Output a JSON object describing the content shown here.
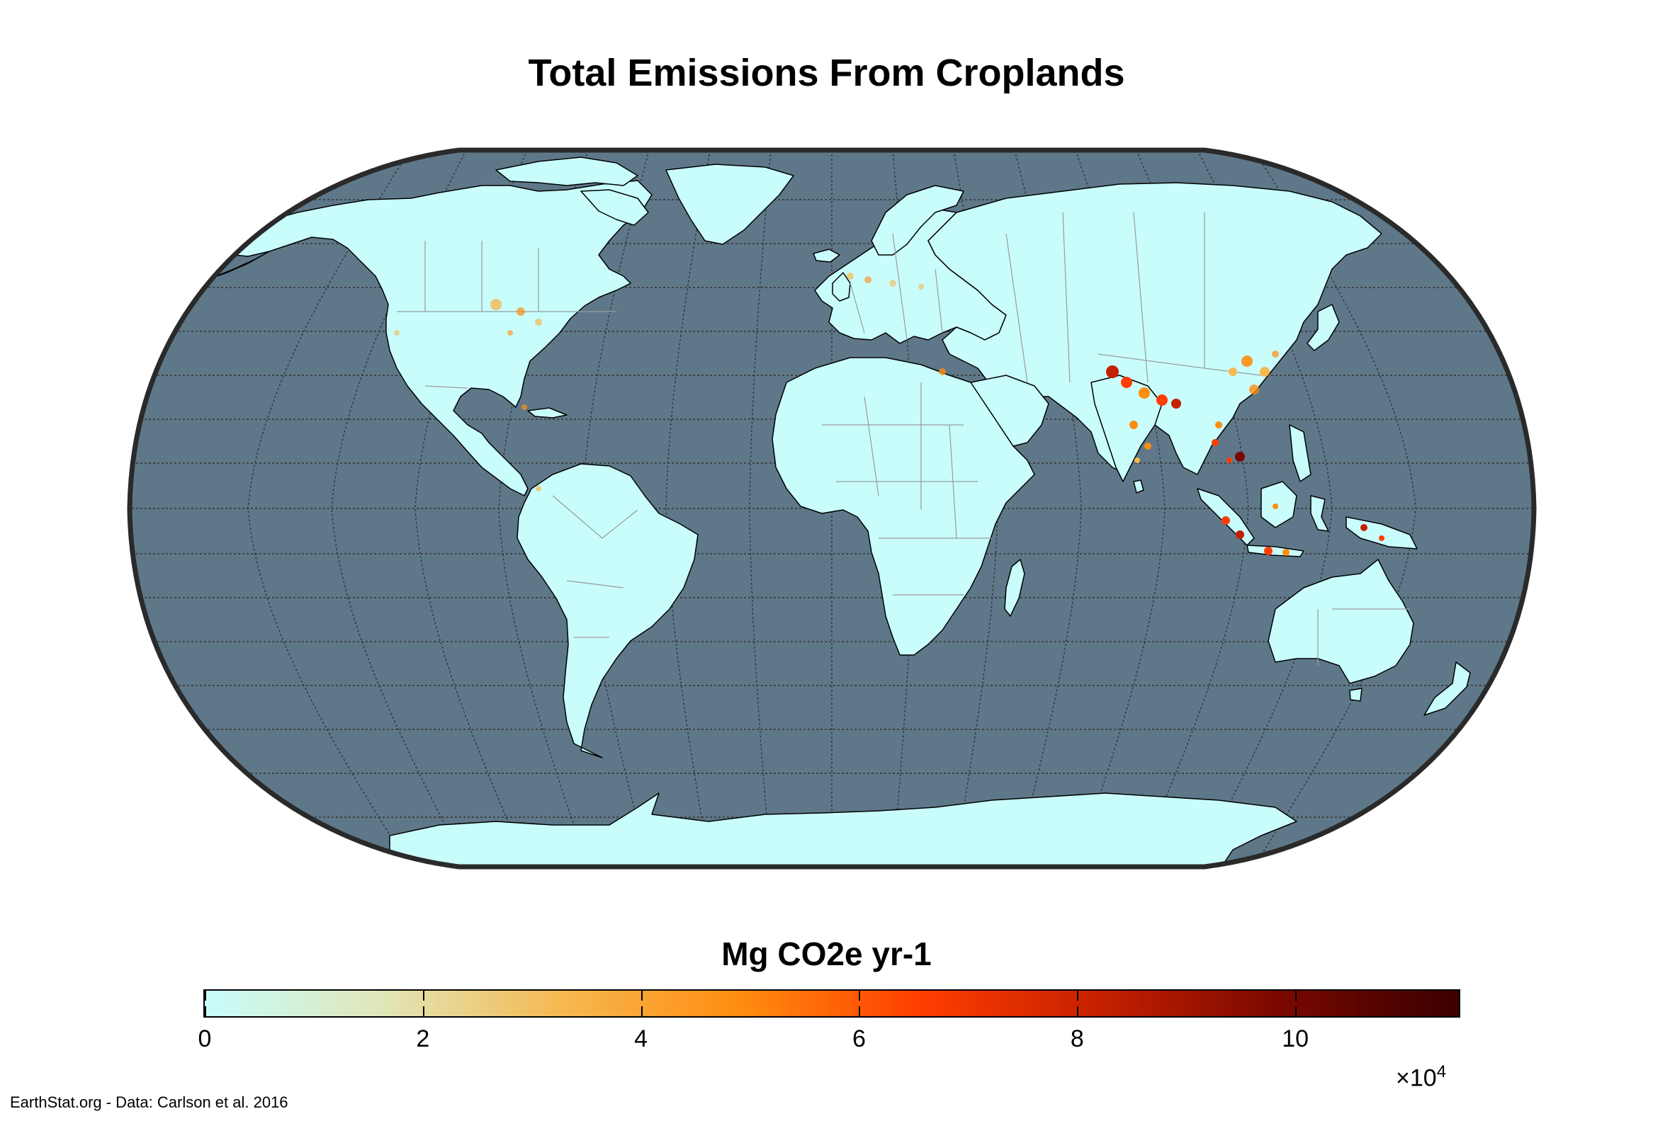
{
  "map": {
    "title": "Total Emissions From Croplands",
    "projection": "Robinson",
    "ocean_color": "#5f7889",
    "land_color": "#c8fdfc",
    "frame_color": "#2a2a2a",
    "graticule": true
  },
  "colorbar": {
    "title": "Mg CO2e yr-1",
    "ticks": [
      "0",
      "2",
      "4",
      "6",
      "8",
      "10"
    ],
    "range": [
      0,
      11.5
    ],
    "exponent_base": "×10",
    "exponent_power": "4",
    "colormap": [
      "#c8fdfc",
      "#e0e6b8",
      "#f6b850",
      "#ff8c10",
      "#ff3d00",
      "#c42000",
      "#7a0800",
      "#3a0000"
    ]
  },
  "credit": "EarthStat.org - Data: Carlson et al. 2016"
}
